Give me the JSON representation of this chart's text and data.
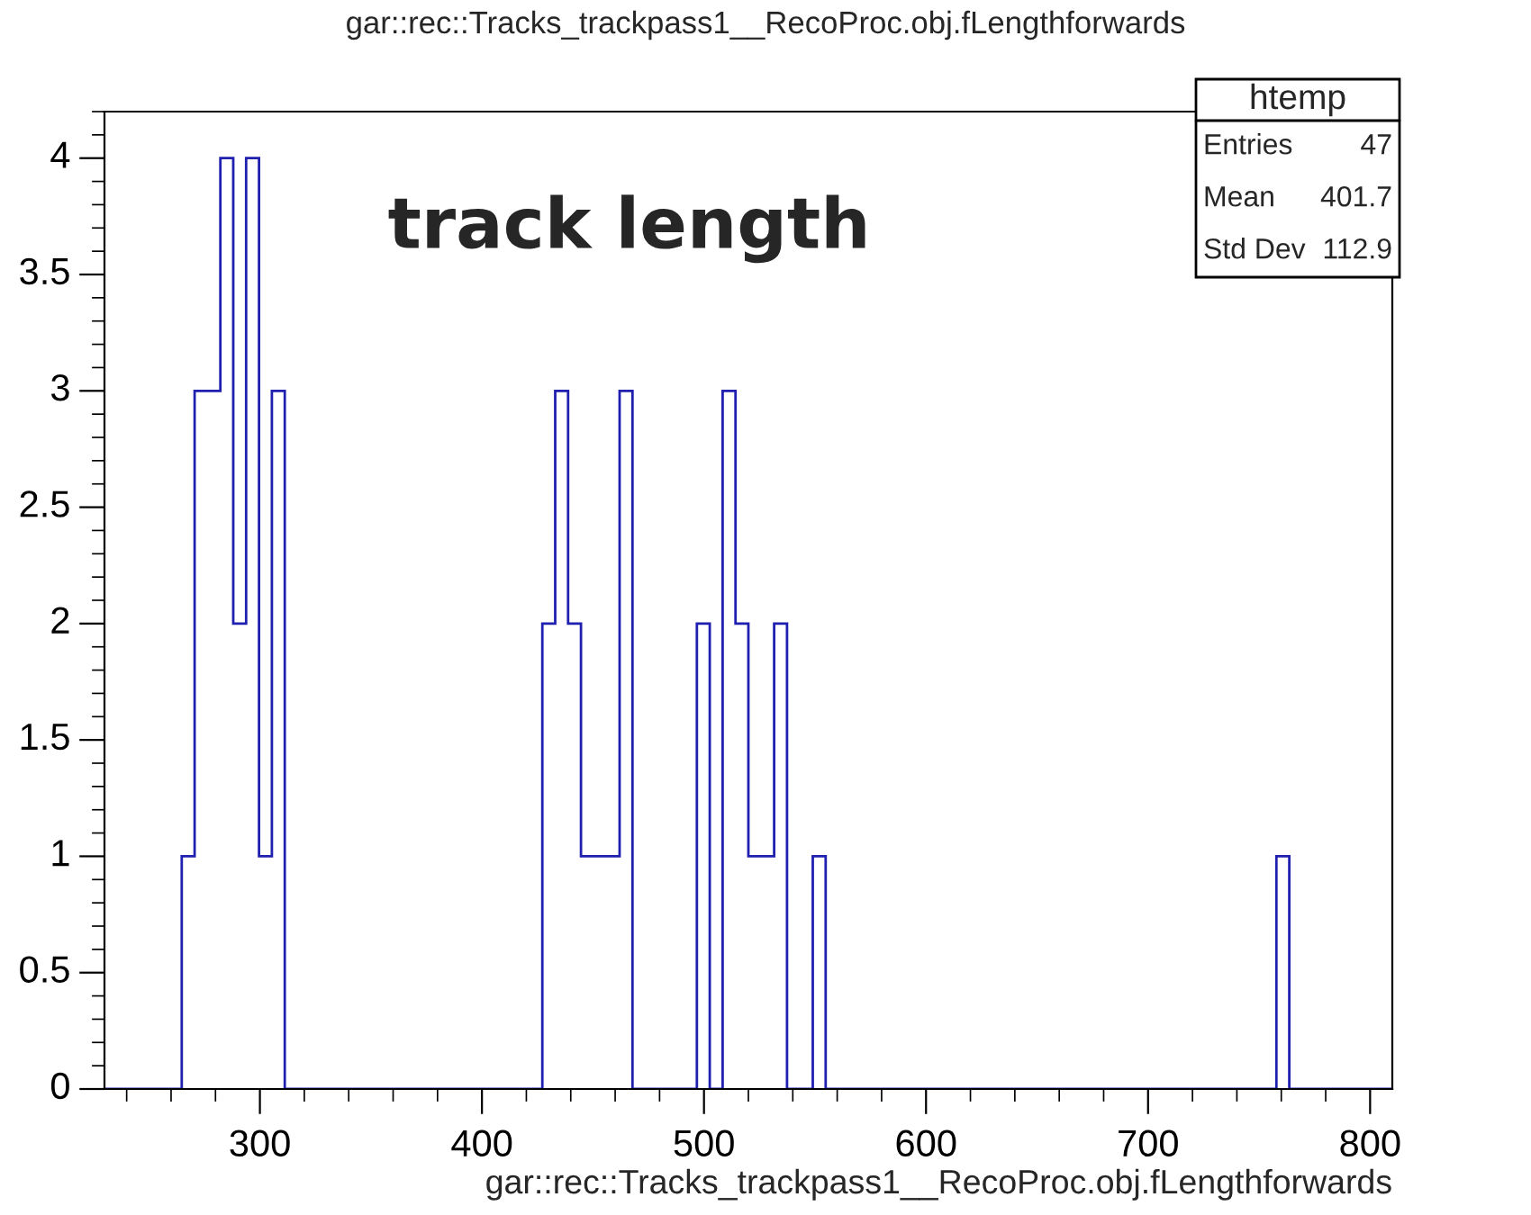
{
  "chart_data": {
    "type": "histogram",
    "title": "gar::rec::Tracks_trackpass1__RecoProc.obj.fLengthforwards",
    "xlabel": "gar::rec::Tracks_trackpass1__RecoProc.obj.fLengthforwards",
    "annotations": [
      "track length",
      "htemp",
      "Entries",
      "47",
      "Mean",
      "401.7",
      "Std Dev",
      "112.9"
    ],
    "bins": [
      230,
      235.8,
      241.6,
      247.4,
      253.2,
      259,
      264.8,
      270.6,
      276.4,
      282.2,
      288,
      293.8,
      299.6,
      305.4,
      311.2,
      317,
      322.8,
      328.6,
      334.4,
      340.2,
      346,
      351.8,
      357.6,
      363.4,
      369.2,
      375,
      380.8,
      386.6,
      392.4,
      398.2,
      404,
      409.8,
      415.6,
      421.4,
      427.2,
      433,
      438.8,
      444.6,
      450.4,
      456.2,
      462,
      467.8,
      473.6,
      479.4,
      485.2,
      491,
      496.8,
      502.6,
      508.4,
      514.2,
      520,
      525.8,
      531.6,
      537.4,
      543.2,
      549,
      554.8,
      560.6,
      566.4,
      572.2,
      578,
      583.8,
      589.6,
      595.4,
      601.2,
      607,
      612.8,
      618.6,
      624.4,
      630.2,
      636,
      641.8,
      647.6,
      653.4,
      659.2,
      665,
      670.8,
      676.6,
      682.4,
      688.2,
      694,
      699.8,
      705.6,
      711.4,
      717.2,
      723,
      728.8,
      734.6,
      740.4,
      746.2,
      752,
      757.8,
      763.6,
      769.4,
      775.2,
      781,
      786.8,
      792.6,
      798.4,
      804.2,
      810
    ],
    "values": [
      0,
      0,
      0,
      0,
      0,
      0,
      1,
      3,
      3,
      4,
      2,
      4,
      1,
      3,
      0,
      0,
      0,
      0,
      0,
      0,
      0,
      0,
      0,
      0,
      0,
      0,
      0,
      0,
      0,
      0,
      0,
      0,
      0,
      0,
      2,
      3,
      2,
      1,
      1,
      1,
      3,
      0,
      0,
      0,
      0,
      0,
      2,
      0,
      3,
      2,
      1,
      1,
      2,
      0,
      0,
      1,
      0,
      0,
      0,
      0,
      0,
      0,
      0,
      0,
      0,
      0,
      0,
      0,
      0,
      0,
      0,
      0,
      0,
      0,
      0,
      0,
      0,
      0,
      0,
      0,
      0,
      0,
      0,
      0,
      0,
      0,
      0,
      0,
      0,
      0,
      0,
      1,
      0,
      0,
      0,
      0,
      0,
      0,
      0,
      0
    ],
    "color": "#2020b0",
    "xlim": [
      230,
      810
    ],
    "ylim": [
      0,
      4.2
    ],
    "xticks": [
      300,
      400,
      500,
      600,
      700,
      800
    ],
    "yticks": [
      0,
      0.5,
      1,
      1.5,
      2,
      2.5,
      3,
      3.5,
      4
    ],
    "grid": false
  }
}
